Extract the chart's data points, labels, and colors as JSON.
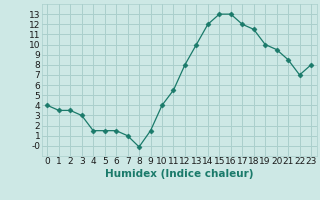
{
  "x": [
    0,
    1,
    2,
    3,
    4,
    5,
    6,
    7,
    8,
    9,
    10,
    11,
    12,
    13,
    14,
    15,
    16,
    17,
    18,
    19,
    20,
    21,
    22,
    23
  ],
  "y": [
    4.0,
    3.5,
    3.5,
    3.0,
    1.5,
    1.5,
    1.5,
    1.0,
    -0.1,
    1.5,
    4.0,
    5.5,
    8.0,
    10.0,
    12.0,
    13.0,
    13.0,
    12.0,
    11.5,
    10.0,
    9.5,
    8.5,
    7.0,
    8.0
  ],
  "line_color": "#1a7a6a",
  "marker": "D",
  "marker_size": 2.5,
  "bg_color": "#cde8e5",
  "grid_color": "#aacfcc",
  "xlabel": "Humidex (Indice chaleur)",
  "ylim": [
    -1,
    14
  ],
  "xlim": [
    -0.5,
    23.5
  ],
  "yticks": [
    0,
    1,
    2,
    3,
    4,
    5,
    6,
    7,
    8,
    9,
    10,
    11,
    12,
    13
  ],
  "xticks": [
    0,
    1,
    2,
    3,
    4,
    5,
    6,
    7,
    8,
    9,
    10,
    11,
    12,
    13,
    14,
    15,
    16,
    17,
    18,
    19,
    20,
    21,
    22,
    23
  ],
  "xtick_labels": [
    "0",
    "1",
    "2",
    "3",
    "4",
    "5",
    "6",
    "7",
    "8",
    "9",
    "10",
    "11",
    "12",
    "13",
    "14",
    "15",
    "16",
    "17",
    "18",
    "19",
    "20",
    "21",
    "22",
    "23"
  ],
  "ytick_labels": [
    "-0",
    "1",
    "2",
    "3",
    "4",
    "5",
    "6",
    "7",
    "8",
    "9",
    "10",
    "11",
    "12",
    "13"
  ],
  "font_size": 6.5,
  "label_font_size": 7.5
}
